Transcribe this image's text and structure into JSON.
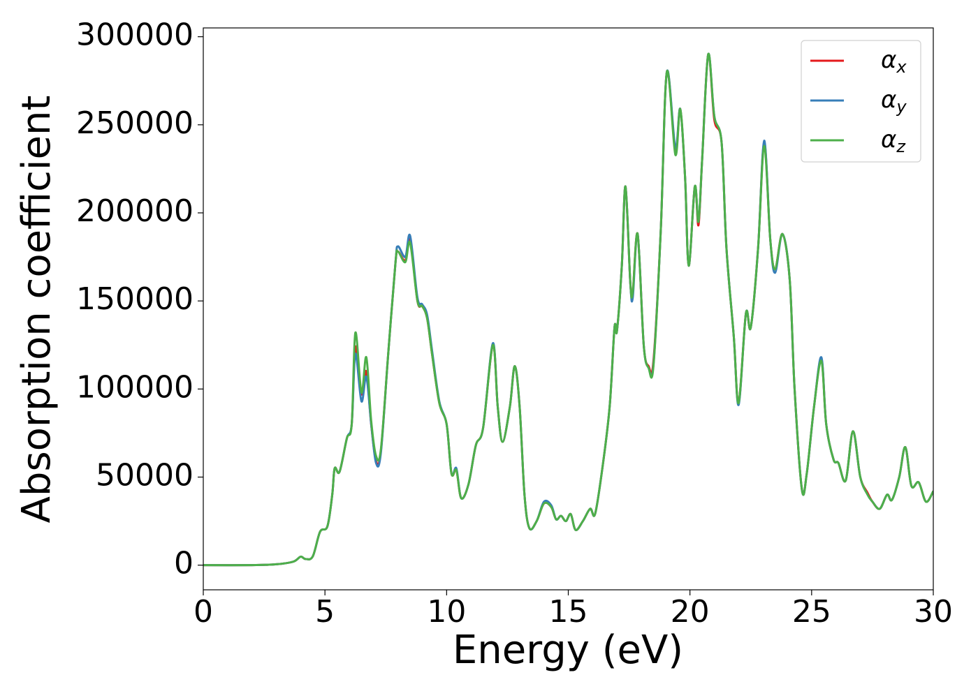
{
  "chart_data": {
    "type": "line",
    "xlabel": "Energy (eV)",
    "ylabel": "Absorption coefficient",
    "xlim": [
      0,
      30
    ],
    "xticks": [
      0,
      5,
      10,
      15,
      20,
      25,
      30
    ],
    "ylim": [
      -14000,
      305000
    ],
    "yticks": [
      0,
      50000,
      100000,
      150000,
      200000,
      250000,
      300000
    ],
    "legend": "upper right",
    "grid": false,
    "x": [
      0,
      2,
      3,
      3.7,
      4.0,
      4.2,
      4.5,
      4.8,
      5.1,
      5.3,
      5.4,
      5.6,
      5.9,
      6.1,
      6.25,
      6.5,
      6.7,
      6.9,
      7.1,
      7.3,
      7.6,
      7.9,
      8.0,
      8.3,
      8.5,
      8.8,
      9.0,
      9.2,
      9.4,
      9.7,
      10.0,
      10.2,
      10.4,
      10.6,
      10.9,
      11.2,
      11.5,
      11.9,
      12.1,
      12.3,
      12.6,
      12.8,
      13.0,
      13.2,
      13.4,
      13.7,
      14.0,
      14.3,
      14.5,
      14.7,
      14.9,
      15.1,
      15.3,
      15.6,
      15.9,
      16.1,
      16.4,
      16.7,
      16.9,
      17.0,
      17.2,
      17.35,
      17.55,
      17.65,
      17.85,
      18.1,
      18.3,
      18.5,
      18.8,
      19.05,
      19.4,
      19.6,
      19.8,
      19.95,
      20.2,
      20.35,
      20.5,
      20.75,
      21.0,
      21.3,
      21.5,
      21.8,
      22.0,
      22.3,
      22.5,
      22.8,
      23.05,
      23.3,
      23.5,
      23.8,
      24.1,
      24.3,
      24.6,
      24.8,
      25.1,
      25.4,
      25.6,
      25.9,
      26.1,
      26.4,
      26.7,
      27.0,
      27.3,
      27.5,
      27.8,
      28.1,
      28.3,
      28.6,
      28.85,
      29.1,
      29.4,
      29.7,
      30.0
    ],
    "series": [
      {
        "name": "αx",
        "color": "#e41a1c",
        "values": [
          0,
          0,
          500,
          2000,
          4800,
          3500,
          5000,
          19000,
          22000,
          40000,
          55000,
          53000,
          72000,
          80000,
          124000,
          97000,
          110000,
          80000,
          59000,
          65000,
          120000,
          172000,
          178000,
          173000,
          185000,
          150000,
          147000,
          140000,
          120000,
          92000,
          80000,
          52000,
          54000,
          38000,
          46000,
          68000,
          78000,
          125000,
          90000,
          70000,
          90000,
          113000,
          90000,
          40000,
          21000,
          25000,
          35000,
          33000,
          26000,
          28000,
          25000,
          29000,
          20000,
          25000,
          32000,
          29000,
          55000,
          90000,
          135000,
          133000,
          170000,
          215000,
          160000,
          155000,
          188000,
          125000,
          113000,
          116000,
          190000,
          280000,
          235000,
          259000,
          220000,
          170000,
          215000,
          193000,
          230000,
          290000,
          253000,
          240000,
          180000,
          130000,
          92000,
          143000,
          135000,
          180000,
          240000,
          185000,
          168000,
          188000,
          162000,
          100000,
          43000,
          52000,
          90000,
          117000,
          80000,
          60000,
          58000,
          48000,
          76000,
          50000,
          41000,
          36000,
          32000,
          40000,
          37000,
          50000,
          67000,
          45000,
          47000,
          36000,
          42000
        ]
      },
      {
        "name": "αy",
        "color": "#377eb8",
        "values": [
          0,
          0,
          500,
          2000,
          4800,
          3500,
          5000,
          19000,
          22000,
          40000,
          55000,
          53000,
          72000,
          80000,
          120000,
          93000,
          107000,
          80000,
          58000,
          64000,
          120000,
          172000,
          181000,
          175000,
          187000,
          152000,
          148000,
          142000,
          122000,
          93000,
          80000,
          52000,
          55000,
          38000,
          46000,
          68000,
          78000,
          126000,
          90000,
          70000,
          90000,
          113000,
          90000,
          40000,
          21000,
          25000,
          36000,
          34000,
          26000,
          28000,
          25000,
          29000,
          20000,
          25000,
          32000,
          29000,
          55000,
          90000,
          135000,
          133000,
          170000,
          215000,
          160000,
          152000,
          188000,
          125000,
          112000,
          114000,
          190000,
          280000,
          237000,
          259000,
          220000,
          170000,
          215000,
          195000,
          230000,
          290000,
          255000,
          240000,
          180000,
          130000,
          91000,
          143000,
          135000,
          180000,
          241000,
          185000,
          166000,
          188000,
          162000,
          100000,
          43000,
          52000,
          90000,
          118000,
          80000,
          60000,
          58000,
          48000,
          76000,
          50000,
          40000,
          36000,
          32000,
          40000,
          37000,
          50000,
          67000,
          45000,
          47000,
          36000,
          42000
        ]
      },
      {
        "name": "αz",
        "color": "#4daf4a",
        "values": [
          0,
          0,
          500,
          2000,
          4800,
          3500,
          5000,
          19000,
          22000,
          40000,
          55000,
          53000,
          72000,
          80000,
          132000,
          98000,
          118000,
          82000,
          62000,
          66000,
          120000,
          172000,
          178000,
          172000,
          183000,
          150000,
          147000,
          140000,
          120000,
          92000,
          80000,
          52000,
          54000,
          38000,
          46000,
          68000,
          78000,
          125000,
          90000,
          70000,
          90000,
          113000,
          90000,
          40000,
          21000,
          25000,
          35000,
          33000,
          26000,
          28000,
          25000,
          29000,
          20000,
          25000,
          32000,
          29000,
          55000,
          90000,
          135000,
          133000,
          170000,
          215000,
          160000,
          155000,
          188000,
          125000,
          112000,
          113000,
          190000,
          280000,
          233000,
          259000,
          220000,
          170000,
          215000,
          195000,
          230000,
          290000,
          255000,
          240000,
          180000,
          130000,
          92000,
          143000,
          135000,
          180000,
          238000,
          185000,
          168000,
          188000,
          162000,
          100000,
          43000,
          52000,
          90000,
          116000,
          80000,
          60000,
          58000,
          48000,
          76000,
          50000,
          40000,
          36000,
          32000,
          40000,
          37000,
          50000,
          67000,
          45000,
          47000,
          36000,
          42000
        ]
      }
    ]
  }
}
